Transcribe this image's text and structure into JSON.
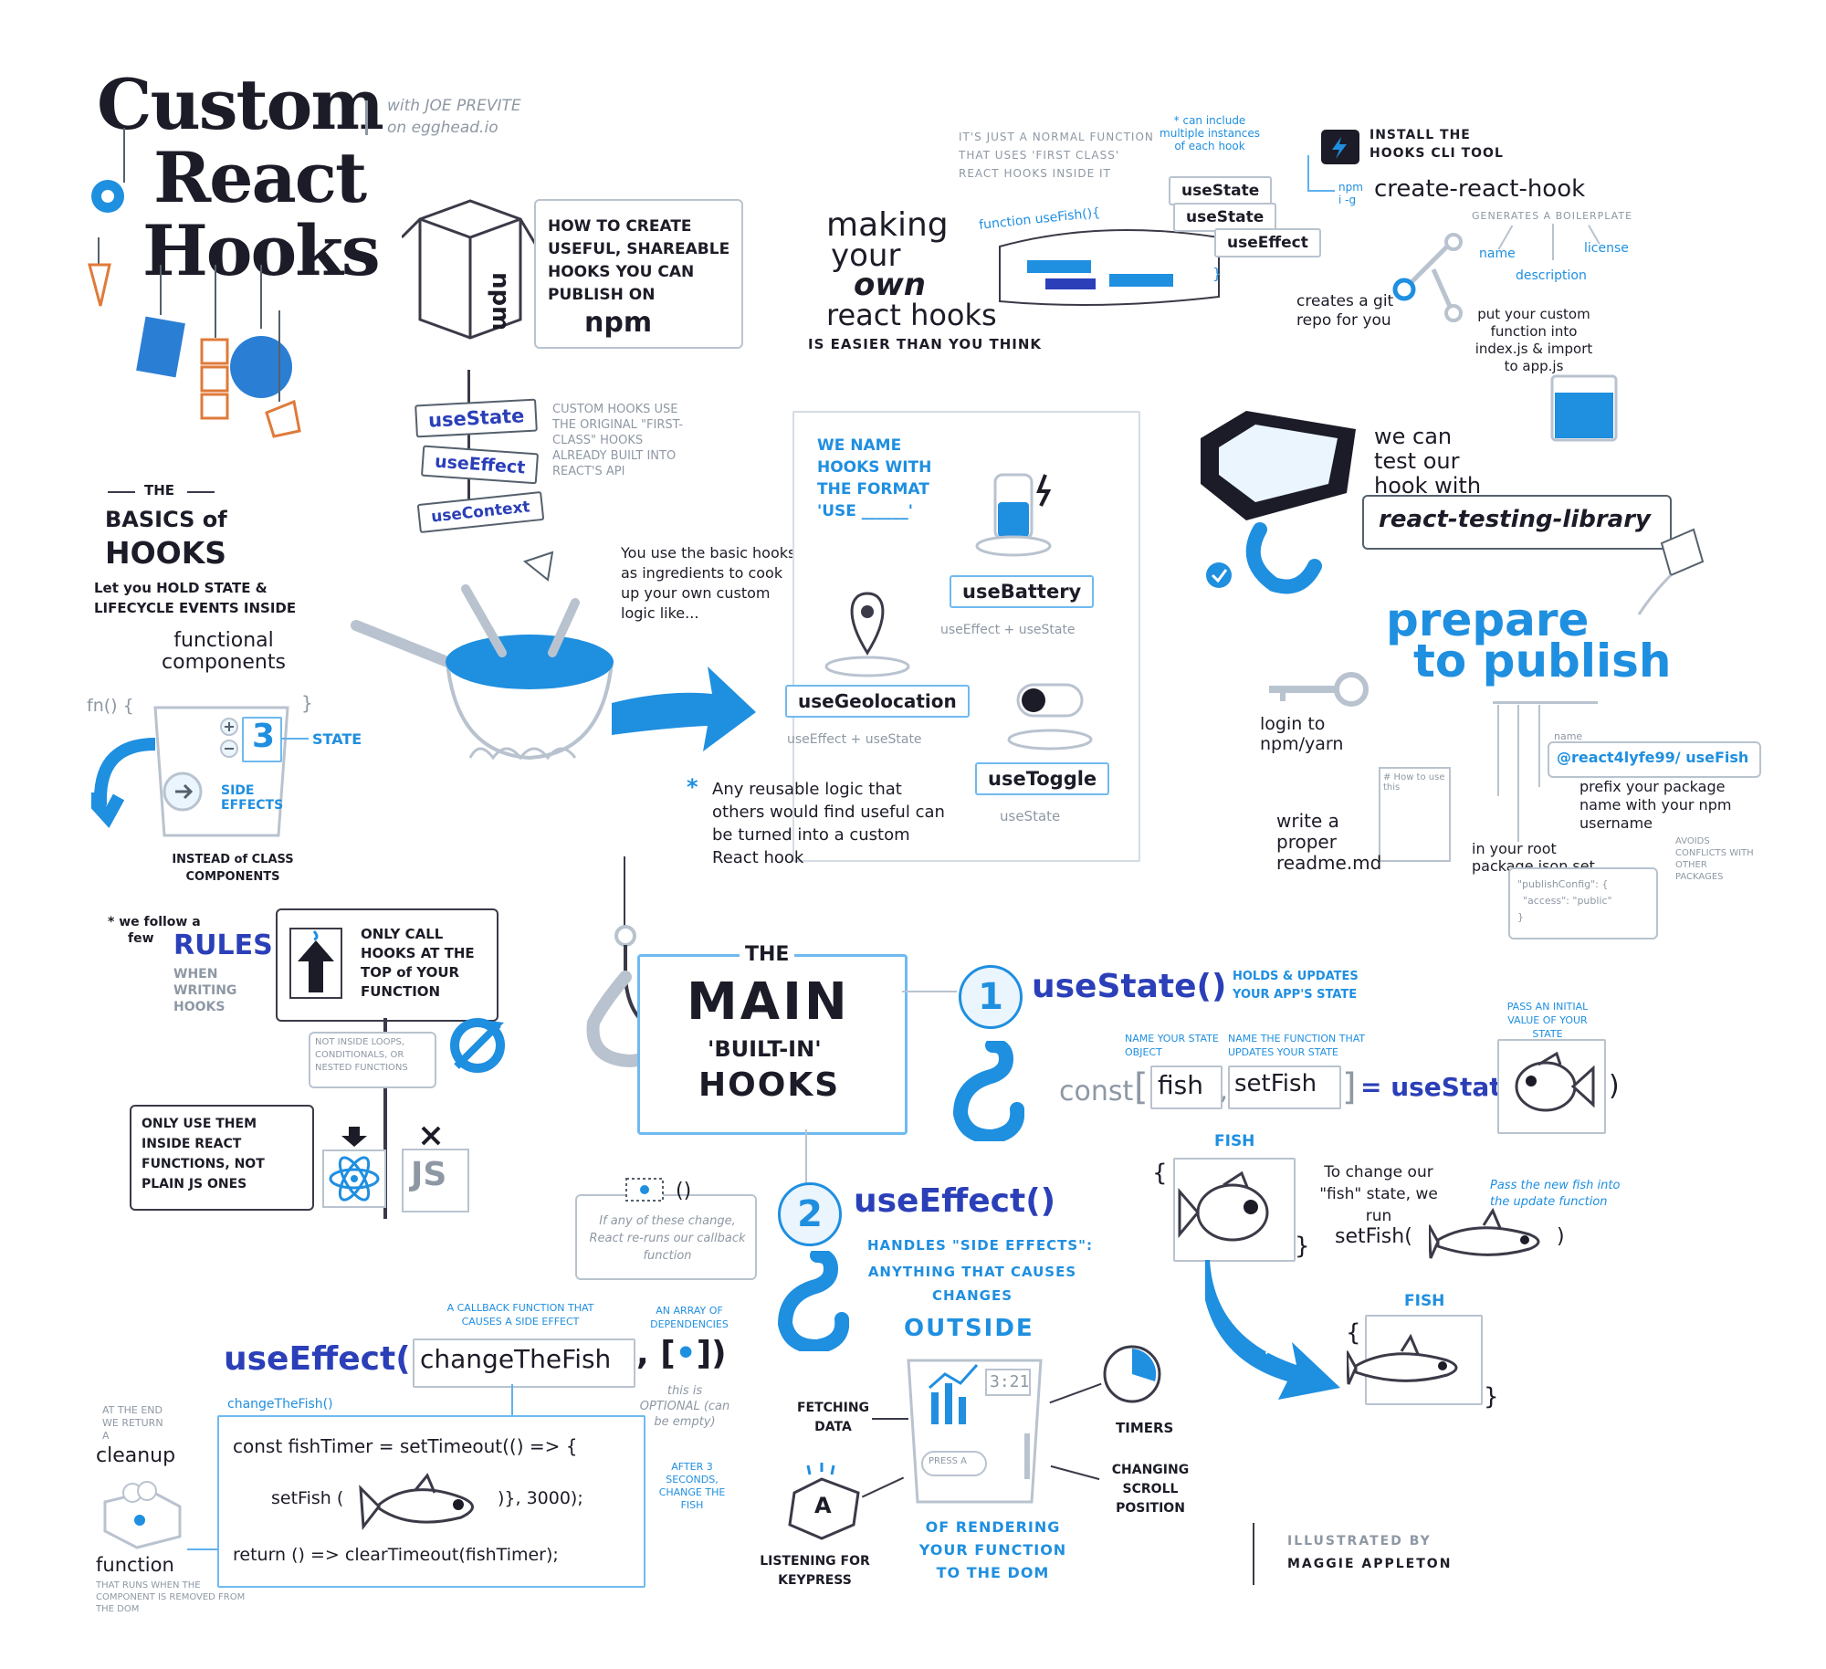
{
  "title": {
    "line1": "Custom",
    "line2": "React",
    "line3": "Hooks",
    "byline1": "with JOE PREVITE",
    "byline2": "on egghead.io"
  },
  "intro": {
    "npm_box_label": "npm",
    "how_to": "How to create useful, shareable hooks you can publish on",
    "how_to_npm": "npm",
    "signs": [
      "useState",
      "useEffect",
      "useContext"
    ],
    "custom_hooks_note": "Custom hooks use the original \"first-class\" hooks already built into React's API"
  },
  "making": {
    "heading_1": "making",
    "heading_2": "your",
    "heading_3": "own",
    "heading_4": "react hooks",
    "subtitle": "IS EASIER THAN YOU THINK",
    "normal_function_note": "IT'S JUST A NORMAL FUNCTION THAT USES 'FIRST CLASS' REACT HOOKS INSIDE IT",
    "multiple_note": "* can include multiple instances of each hook",
    "code_start": "function useFish(){",
    "code_end": "}",
    "stack": [
      "useState",
      "useState",
      "useEffect"
    ]
  },
  "cli": {
    "install": "INSTALL THE HOOKS CLI TOOL",
    "npm_cmd": "npm i -g",
    "command": "create-react-hook",
    "generates": "GENERATES A BOILERPLATE",
    "fields": [
      "name",
      "description",
      "license"
    ],
    "git_repo": "creates a git repo for you",
    "put_custom": "put your custom function into index.js & import to app.js"
  },
  "testing": {
    "note": "we can test our hook with",
    "library": "react-testing-library"
  },
  "publish": {
    "heading_1": "prepare",
    "heading_2": "to publish",
    "login": "login to npm/yarn",
    "readme": "write a proper readme.md",
    "readme_doc": "# How to use this",
    "package_json": "in your root package.json set",
    "publish_config_1": "\"publishConfig\": {",
    "publish_config_2": "\"access\": \"public\"",
    "publish_config_3": "}",
    "name_label": "name",
    "package_name": "@react4lyfe99/ useFish",
    "prefix_note": "prefix your package name with your npm username",
    "conflicts_note": "AVOIDS CONFLICTS WITH OTHER PACKAGES"
  },
  "basics": {
    "the": "THE",
    "heading_1": "BASICS of",
    "heading_2": "HOOKS",
    "desc_1": "Let you HOLD STATE &",
    "desc_2": "LIFECYCLE EVENTS INSIDE",
    "functional": "functional components",
    "fn_start": "fn() {",
    "fn_end": "}",
    "state_value": "3",
    "state_label": "STATE",
    "side_effects": "SIDE EFFECTS",
    "instead": "INSTEAD of CLASS COMPONENTS"
  },
  "cooking": {
    "ingredients_note": "You use the basic hooks as ingredients to cook up your own custom logic like...",
    "name_format": "We name hooks with the format 'use ______'",
    "reusable_note": "Any reusable logic that others would find useful can be turned into a custom React hook",
    "examples": [
      {
        "name": "useBattery",
        "uses": "useEffect + useState"
      },
      {
        "name": "useGeolocation",
        "uses": "useEffect + useState"
      },
      {
        "name": "useToggle",
        "uses": "useState"
      }
    ]
  },
  "rules": {
    "follow_1": "* we follow a",
    "follow_2": "few",
    "rules_word": "RULES",
    "when_writing": "when writing hooks",
    "rule_1": "ONLY CALL HOOKS AT THE TOP of YOUR FUNCTION",
    "rule_1_sub": "NOT INSIDE LOOPS, CONDITIONALS, OR NESTED FUNCTIONS",
    "rule_2": "ONLY USE THEM INSIDE REACT FUNCTIONS, NOT PLAIN JS ONES",
    "js_label": "JS"
  },
  "main": {
    "the": "THE",
    "main": "MAIN",
    "built_in": "'BUILT-IN'",
    "hooks": "HOOKS"
  },
  "use_state": {
    "num": "1",
    "name": "useState()",
    "desc": "HOLDS & UPDATES YOUR APP'S STATE",
    "name_note": "NAME YOUR STATE OBJECT",
    "fn_note": "NAME THE FUNCTION THAT UPDATES YOUR STATE",
    "initial_note": "PASS AN INITIAL VALUE OF YOUR STATE",
    "const": "const",
    "fish": "fish",
    "setFish": "setFish",
    "equals": "= useState(",
    "close": ")",
    "fish_label": "FISH",
    "change_note": "To change our \"fish\" state, we run",
    "set_fish_call": "setFish(",
    "pass_new": "Pass the new fish into the update function",
    "arrow_label": "setFish(",
    "fish_label_2": "FISH",
    "brace_open": "{",
    "brace_close": "}"
  },
  "use_effect": {
    "num": "2",
    "name": "useEffect()",
    "desc_1": "HANDLES \"SIDE EFFECTS\":",
    "desc_2": "ANYTHING THAT CAUSES CHANGES",
    "outside": "OUTSIDE",
    "of_rendering": "OF RENDERING YOUR FUNCTION TO THE DOM",
    "deps_note": "If any of these change, React re-runs our callback function",
    "callback_note": "A CALLBACK FUNCTION THAT CAUSES A SIDE EFFECT",
    "array_note": "AN ARRAY OF DEPENDENCIES",
    "call": "useEffect(",
    "callback_name": "changeTheFish",
    "optional_note": "this is OPTIONAL (can be empty)",
    "code_label": "changeTheFish()",
    "code_1": "const fishTimer = setTimeout(() => {",
    "code_2": "setFish (",
    "code_2b": ")}, 3000);",
    "code_3": "return () => clearTimeout(fishTimer);",
    "after_note": "AFTER 3 SECONDS, CHANGE THE FISH",
    "cleanup_1": "AT THE END WE RETURN A",
    "cleanup_2": "cleanup",
    "cleanup_3": "function",
    "cleanup_4": "THAT RUNS WHEN THE COMPONENT IS REMOVED FROM THE DOM",
    "fetching": "FETCHING DATA",
    "timers": "TIMERS",
    "keypress": "LISTENING FOR KEYPRESS",
    "scroll": "CHANGING SCROLL POSITION",
    "clock": "3:21",
    "press_a": "PRESS A",
    "key_a": "A"
  },
  "credit": {
    "line1": "ILLUSTRATED BY",
    "line2": "MAGGIE APPLETON"
  },
  "colors": {
    "ink": "#1c1c28",
    "blue": "#1f8fe0",
    "dark_blue": "#2b3fb8",
    "grey": "#8e98a4"
  }
}
